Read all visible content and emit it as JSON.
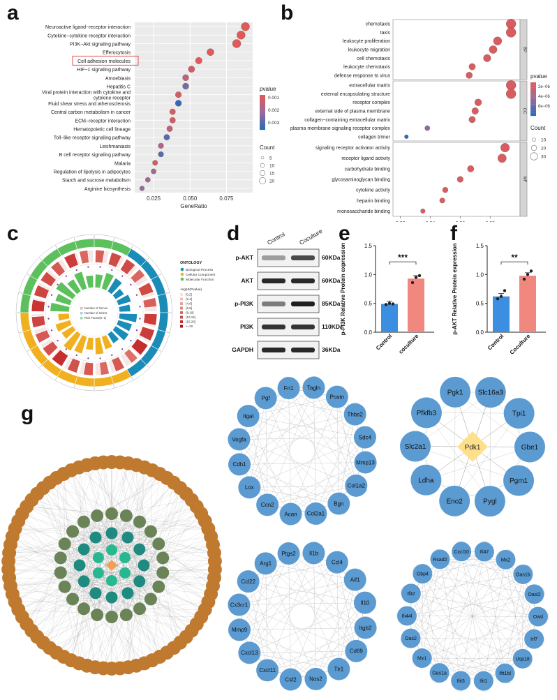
{
  "panel_labels": {
    "a": "a",
    "b": "b",
    "c": "c",
    "d": "d",
    "e": "e",
    "f": "f",
    "g": "g"
  },
  "kegg": {
    "terms": [
      {
        "name": "Neuroactive ligand−receptor interaction",
        "ratio": 0.088,
        "pvalue": 0.001,
        "count": 20
      },
      {
        "name": "Cytokine−cytokine receptor interaction",
        "ratio": 0.085,
        "pvalue": 0.001,
        "count": 20
      },
      {
        "name": "PI3K−Akt signaling pathway",
        "ratio": 0.082,
        "pvalue": 0.001,
        "count": 20
      },
      {
        "name": "Efferocytosis",
        "ratio": 0.064,
        "pvalue": 0.001,
        "count": 14
      },
      {
        "name": "Cell adhesion molecules",
        "ratio": 0.056,
        "pvalue": 0.001,
        "count": 12
      },
      {
        "name": "HIF−1 signaling pathway",
        "ratio": 0.051,
        "pvalue": 0.0012,
        "count": 11
      },
      {
        "name": "Amoebiasis",
        "ratio": 0.047,
        "pvalue": 0.0015,
        "count": 10
      },
      {
        "name": "Hepatitis C",
        "ratio": 0.047,
        "pvalue": 0.0025,
        "count": 10
      },
      {
        "name": "Viral protein interaction with cytokine and cytokine receptor",
        "ratio": 0.042,
        "pvalue": 0.0012,
        "count": 9
      },
      {
        "name": "Fluid shear stress and atherosclerosis",
        "ratio": 0.042,
        "pvalue": 0.0032,
        "count": 10
      },
      {
        "name": "Central carbon metabolism in cancer",
        "ratio": 0.038,
        "pvalue": 0.0012,
        "count": 8
      },
      {
        "name": "ECM−receptor interaction",
        "ratio": 0.038,
        "pvalue": 0.0012,
        "count": 8
      },
      {
        "name": "Hematopoietic cell lineage",
        "ratio": 0.036,
        "pvalue": 0.0015,
        "count": 8
      },
      {
        "name": "Toll−like receptor signaling pathway",
        "ratio": 0.034,
        "pvalue": 0.0028,
        "count": 8
      },
      {
        "name": "Leishmaniasis",
        "ratio": 0.03,
        "pvalue": 0.0018,
        "count": 6
      },
      {
        "name": "B cell receptor signaling pathway",
        "ratio": 0.03,
        "pvalue": 0.0028,
        "count": 6
      },
      {
        "name": "Malaria",
        "ratio": 0.026,
        "pvalue": 0.0012,
        "count": 5
      },
      {
        "name": "Regulation of lipolysis in adipocytes",
        "ratio": 0.025,
        "pvalue": 0.002,
        "count": 5
      },
      {
        "name": "Starch and sucrose metabolism",
        "ratio": 0.021,
        "pvalue": 0.002,
        "count": 4
      },
      {
        "name": "Arginine biosynthesis",
        "ratio": 0.017,
        "pvalue": 0.0022,
        "count": 3
      }
    ],
    "highlighted": "Cell adhesion molecules",
    "xticks": [
      "0.025",
      "0.050",
      "0.075"
    ],
    "xlabel": "GeneRatio",
    "legend_pvalue_title": "pvalue",
    "legend_pvalue_ticks": [
      "0.001",
      "0.002",
      "0.003"
    ],
    "legend_count_title": "Count",
    "legend_count_items": [
      "5",
      "10",
      "15",
      "20"
    ]
  },
  "go": {
    "groups": [
      {
        "tag": "BP",
        "terms": [
          {
            "name": "chemotaxis",
            "ratio": 0.094,
            "count": 30
          },
          {
            "name": "taxis",
            "ratio": 0.094,
            "count": 30
          },
          {
            "name": "leukocyte proliferation",
            "ratio": 0.085,
            "count": 24
          },
          {
            "name": "leukocyte migration",
            "ratio": 0.082,
            "count": 22
          },
          {
            "name": "cell chemotaxis",
            "ratio": 0.078,
            "count": 20
          },
          {
            "name": "leukocyte chemotaxis",
            "ratio": 0.068,
            "count": 16
          },
          {
            "name": "defense response to virus",
            "ratio": 0.066,
            "count": 16
          }
        ]
      },
      {
        "tag": "CC",
        "terms": [
          {
            "name": "extracellular matrix",
            "ratio": 0.094,
            "count": 30
          },
          {
            "name": "external encapsulating structure",
            "ratio": 0.094,
            "count": 30
          },
          {
            "name": "receptor complex",
            "ratio": 0.072,
            "count": 18
          },
          {
            "name": "external side of plasma membrane",
            "ratio": 0.07,
            "count": 17
          },
          {
            "name": "collagen−containing extracellular matrix",
            "ratio": 0.068,
            "count": 16
          },
          {
            "name": "plasma membrane signaling receptor complex",
            "ratio": 0.038,
            "count": 10
          },
          {
            "name": "collagen trimer",
            "ratio": 0.024,
            "count": 5
          }
        ]
      },
      {
        "tag": "MF",
        "terms": [
          {
            "name": "signaling receptor activator activity",
            "ratio": 0.09,
            "count": 26
          },
          {
            "name": "receptor ligand activity",
            "ratio": 0.088,
            "count": 25
          },
          {
            "name": "carbohydrate binding",
            "ratio": 0.067,
            "count": 16
          },
          {
            "name": "glycosaminoglycan binding",
            "ratio": 0.06,
            "count": 14
          },
          {
            "name": "cytokine activity",
            "ratio": 0.05,
            "count": 12
          },
          {
            "name": "heparin binding",
            "ratio": 0.048,
            "count": 11
          },
          {
            "name": "monosaccharide binding",
            "ratio": 0.035,
            "count": 8
          }
        ]
      }
    ],
    "xticks": [
      "0.02",
      "0.04",
      "0.06",
      "0.08"
    ],
    "xlabel": "GeneRatio",
    "legend_pvalue_title": "pvalue",
    "legend_pvalue_ticks": [
      "2e−06",
      "4e−06",
      "6e−06"
    ],
    "legend_count_title": "Count",
    "legend_count_items": [
      "10",
      "20",
      "30"
    ]
  },
  "circle": {
    "legend_title": "ONTOLOGY",
    "legend_items": [
      "Biological Process",
      "Cellular Component",
      "Molecular Function"
    ],
    "legend_colors": [
      "#1a8cb8",
      "#f0b020",
      "#5cc05c"
    ],
    "legend_scale_title": "-log10(Pvalue)",
    "legend_scale_items": [
      "[0,2]",
      "(2,4]",
      "(4,6]",
      "(6,8]",
      "(8,10]",
      "(10,15]",
      "(15,20]",
      ">=20"
    ],
    "legend_bar_items": [
      "Number of Genes",
      "Number of Select",
      "Rich Factor(0~1)"
    ],
    "sector_fractions": [
      0.34,
      0.32,
      0.34
    ],
    "bar_fractions": [
      0.85,
      0.7,
      0.9,
      0.65,
      0.8,
      0.55,
      0.6,
      0.75,
      0.7,
      0.45,
      0.6,
      0.5,
      0.8,
      0.65,
      0.7,
      0.5,
      0.6,
      0.75,
      0.55,
      0.8,
      0.9,
      0.6,
      0.7,
      0.5
    ]
  },
  "western": {
    "columns": [
      "Control",
      "Coculture"
    ],
    "rows": [
      {
        "name": "p-AKT",
        "size": "60KDa",
        "intensity": [
          0.35,
          0.75
        ]
      },
      {
        "name": "AKT",
        "size": "60KDa",
        "intensity": [
          0.9,
          0.9
        ]
      },
      {
        "name": "p-PI3K",
        "size": "85KDa",
        "intensity": [
          0.5,
          0.95
        ]
      },
      {
        "name": "PI3K",
        "size": "110KDa",
        "intensity": [
          0.85,
          0.85
        ]
      },
      {
        "name": "GAPDH",
        "size": "36KDa",
        "intensity": [
          0.9,
          0.9
        ]
      }
    ]
  },
  "bar_e": {
    "chart_data": {
      "type": "bar",
      "categories": [
        "Control",
        "coculture"
      ],
      "values": [
        0.49,
        0.93
      ],
      "points": [
        [
          0.48,
          0.5,
          0.49
        ],
        [
          0.86,
          0.95,
          0.98
        ]
      ],
      "colors": [
        "#3b8ee0",
        "#f08880"
      ],
      "ylabel": "p-PI3K Relative Protein expression",
      "ylim": [
        0,
        1.5
      ],
      "yticks": [
        "0.0",
        "0.5",
        "1.0",
        "1.5"
      ],
      "significance": "***"
    }
  },
  "bar_f": {
    "chart_data": {
      "type": "bar",
      "categories": [
        "Control",
        "Coculture"
      ],
      "values": [
        0.62,
        0.98
      ],
      "points": [
        [
          0.58,
          0.62,
          0.72
        ],
        [
          0.92,
          1.0,
          1.06
        ]
      ],
      "colors": [
        "#3b8ee0",
        "#f08880"
      ],
      "ylabel": "p-AKT Relative Protein expression",
      "ylim": [
        0,
        1.5
      ],
      "yticks": [
        "0.0",
        "0.5",
        "1.0",
        "1.5"
      ],
      "significance": "**"
    }
  },
  "networks": {
    "net1": [
      "Tagln",
      "Postn",
      "Thbs2",
      "Sdc4",
      "Mmp13",
      "Col1a2",
      "Bgn",
      "Col2a1",
      "Acan",
      "Ccn2",
      "Lox",
      "Cdh1",
      "Vegfa",
      "Itgal",
      "Pgf",
      "Fn1"
    ],
    "net2": {
      "center": "Pdk1",
      "nodes": [
        "Slc16a3",
        "Tpi1",
        "Gbe1",
        "Pgm1",
        "Pygl",
        "Eno2",
        "Ldha",
        "Slc2a1",
        "Pfkfb3",
        "Pgk1"
      ]
    },
    "net3": [
      "Il1b",
      "Ccl4",
      "Aif1",
      "Il10",
      "Itgb2",
      "Cd69",
      "Tlr1",
      "Nos2",
      "Csf2",
      "Cxcl11",
      "Cxcl13",
      "Mmp9",
      "Cx3cr1",
      "Ccl22",
      "Arg1",
      "Ptgs2"
    ],
    "net4": [
      "Ifi47",
      "Mx2",
      "Oas1b",
      "Oasl2",
      "Oasl",
      "Irf7",
      "Usp18",
      "Ifit1bl",
      "Ifit1",
      "Ifit3",
      "Oas1a",
      "Mx1",
      "Oas2",
      "Ifi44l",
      "Ifit2",
      "Gbp4",
      "Rsad2",
      "Cxcl10"
    ]
  },
  "net_g": {
    "outer_count": 78,
    "mid_count": 22,
    "inner_count": 12,
    "core_count": 6,
    "colors": {
      "outer": "#c07a30",
      "mid": "#6a8458",
      "inner": "#1f8a80",
      "core": "#28b890",
      "center": "#f0a050"
    }
  }
}
